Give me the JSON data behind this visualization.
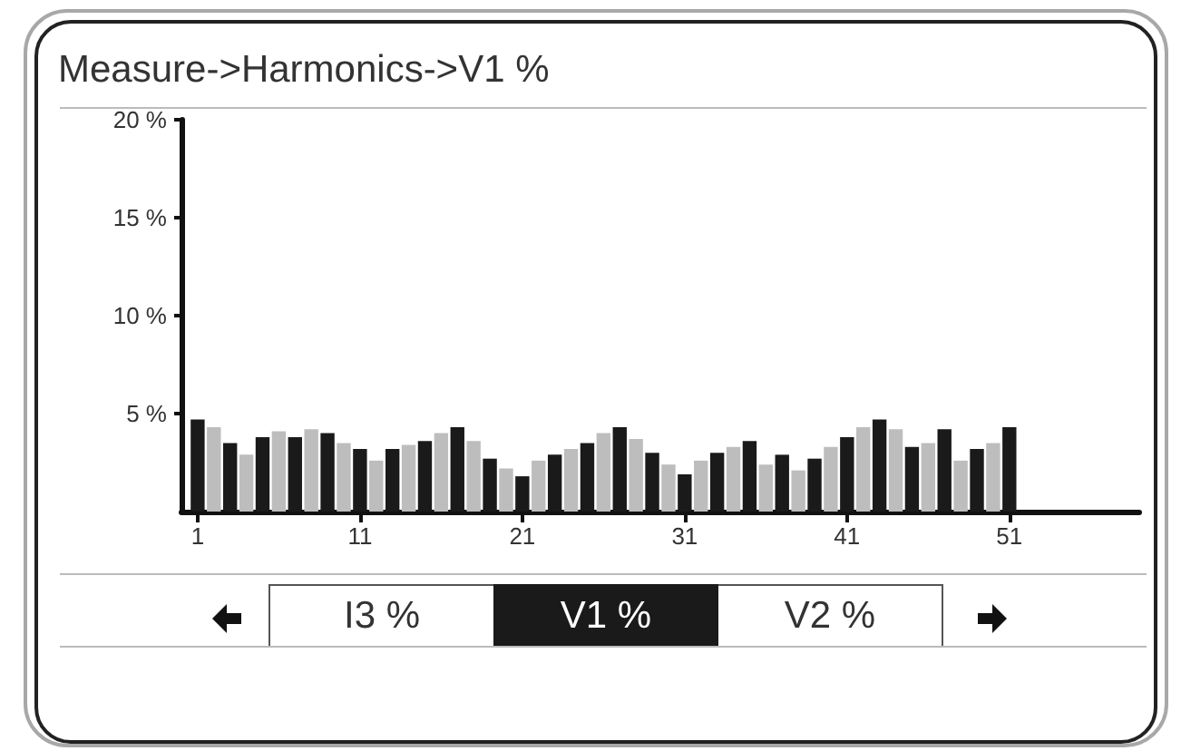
{
  "chart_data": {
    "type": "bar",
    "title": "Measure->Harmonics->V1 %",
    "x": [
      1,
      2,
      3,
      4,
      5,
      6,
      7,
      8,
      9,
      10,
      11,
      12,
      13,
      14,
      15,
      16,
      17,
      18,
      19,
      20,
      21,
      22,
      23,
      24,
      25,
      26,
      27,
      28,
      29,
      30,
      31,
      32,
      33,
      34,
      35,
      36,
      37,
      38,
      39,
      40,
      41,
      42,
      43,
      44,
      45,
      46,
      47,
      48,
      49,
      50,
      51
    ],
    "values": [
      4.7,
      4.3,
      3.5,
      2.9,
      3.8,
      4.1,
      3.8,
      4.2,
      4.0,
      3.5,
      3.2,
      2.6,
      3.2,
      3.4,
      3.6,
      4.0,
      4.3,
      3.6,
      2.7,
      2.2,
      1.8,
      2.6,
      2.9,
      3.2,
      3.5,
      4.0,
      4.3,
      3.7,
      3.0,
      2.4,
      1.9,
      2.6,
      3.0,
      3.3,
      3.6,
      2.4,
      2.9,
      2.1,
      2.7,
      3.3,
      3.8,
      4.3,
      4.7,
      4.2,
      3.3,
      3.5,
      4.2,
      2.6,
      3.2,
      3.5,
      4.3
    ],
    "colors": [
      "#1a1a1a",
      "#bdbdbd",
      "#1a1a1a",
      "#bdbdbd",
      "#1a1a1a",
      "#bdbdbd",
      "#1a1a1a",
      "#bdbdbd",
      "#1a1a1a",
      "#bdbdbd",
      "#1a1a1a",
      "#bdbdbd",
      "#1a1a1a",
      "#bdbdbd",
      "#1a1a1a",
      "#bdbdbd",
      "#1a1a1a",
      "#bdbdbd",
      "#1a1a1a",
      "#bdbdbd",
      "#1a1a1a",
      "#bdbdbd",
      "#1a1a1a",
      "#bdbdbd",
      "#1a1a1a",
      "#bdbdbd",
      "#1a1a1a",
      "#bdbdbd",
      "#1a1a1a",
      "#bdbdbd",
      "#1a1a1a",
      "#bdbdbd",
      "#1a1a1a",
      "#bdbdbd",
      "#1a1a1a",
      "#bdbdbd",
      "#1a1a1a",
      "#bdbdbd",
      "#1a1a1a",
      "#bdbdbd",
      "#1a1a1a",
      "#bdbdbd",
      "#1a1a1a",
      "#bdbdbd",
      "#1a1a1a",
      "#bdbdbd",
      "#1a1a1a",
      "#bdbdbd",
      "#1a1a1a",
      "#bdbdbd",
      "#1a1a1a"
    ],
    "xlim": [
      0,
      59
    ],
    "xticks": [
      1,
      11,
      21,
      31,
      41,
      51
    ],
    "ylim": [
      0,
      20
    ],
    "yticks": [
      {
        "value": 5,
        "label": "5 %"
      },
      {
        "value": 10,
        "label": "10 %"
      },
      {
        "value": 15,
        "label": "15 %"
      },
      {
        "value": 20,
        "label": "20 %"
      }
    ],
    "grid": false,
    "annotations": [
      "I3 %",
      "V1 %",
      "V2 %"
    ]
  }
}
